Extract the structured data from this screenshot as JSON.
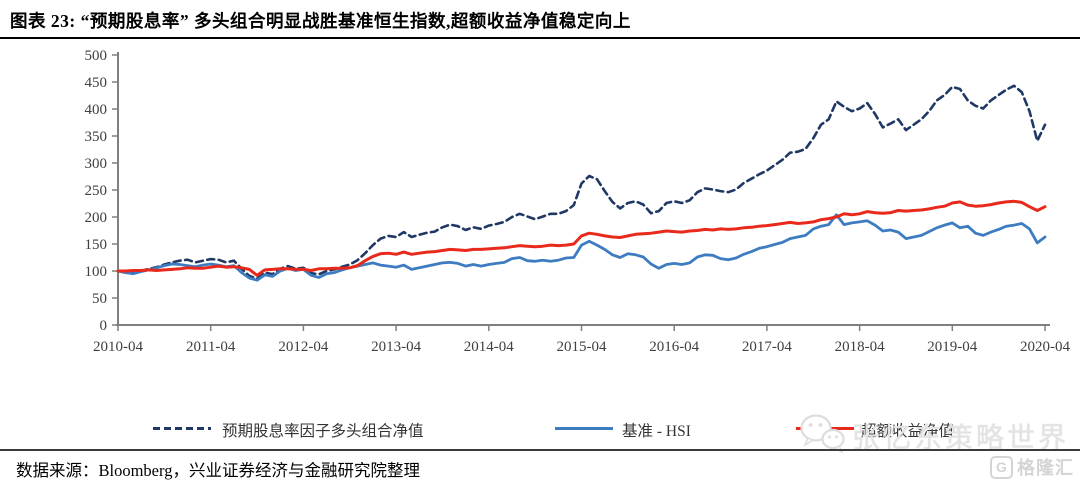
{
  "header": {
    "title": "图表 23: “预期股息率” 多头组合明显战胜基准恒生指数,超额收益净值稳定向上"
  },
  "chart_data": {
    "type": "line",
    "title": "",
    "xlabel": "",
    "ylabel": "",
    "ylim": [
      0,
      500
    ],
    "y_ticks": [
      0,
      50,
      100,
      150,
      200,
      250,
      300,
      350,
      400,
      450,
      500
    ],
    "x_tick_labels": [
      "2010-04",
      "2011-04",
      "2012-04",
      "2013-04",
      "2014-04",
      "2015-04",
      "2016-04",
      "2017-04",
      "2018-04",
      "2019-04",
      "2020-04"
    ],
    "x_frequency": "monthly",
    "x_start": "2010-04",
    "x_end": "2020-04",
    "grid": false,
    "legend_position": "bottom",
    "axis_color": "#7f7f7f",
    "tick_label_color": "#404040",
    "series": [
      {
        "name": "预期股息率因子多头组合净值",
        "color": "#1F3864",
        "style": "dashed",
        "width": 2.6,
        "values": [
          100,
          97,
          96,
          100,
          104,
          107,
          112,
          116,
          119,
          121,
          116,
          119,
          122,
          121,
          116,
          119,
          104,
          91,
          86,
          97,
          94,
          104,
          109,
          104,
          106,
          96,
          94,
          100,
          103,
          108,
          112,
          120,
          133,
          148,
          160,
          165,
          163,
          172,
          163,
          167,
          171,
          173,
          181,
          186,
          183,
          176,
          181,
          178,
          184,
          187,
          191,
          200,
          206,
          201,
          196,
          201,
          206,
          206,
          211,
          222,
          262,
          276,
          270,
          248,
          228,
          216,
          226,
          229,
          223,
          207,
          211,
          226,
          229,
          226,
          231,
          246,
          253,
          251,
          248,
          246,
          251,
          263,
          271,
          279,
          286,
          296,
          306,
          319,
          321,
          326,
          346,
          371,
          381,
          414,
          404,
          396,
          401,
          411,
          391,
          366,
          373,
          381,
          361,
          371,
          381,
          396,
          416,
          426,
          441,
          437,
          416,
          406,
          401,
          416,
          426,
          436,
          443,
          431,
          396,
          341,
          371
        ]
      },
      {
        "name": "基准 - HSI",
        "color": "#3D7CC0",
        "style": "solid",
        "width": 2.8,
        "values": [
          100,
          97,
          95,
          99,
          102,
          106,
          110,
          113,
          112,
          110,
          108,
          111,
          113,
          111,
          108,
          110,
          97,
          87,
          83,
          93,
          90,
          100,
          105,
          101,
          103,
          92,
          88,
          95,
          97,
          102,
          106,
          109,
          112,
          115,
          111,
          109,
          107,
          111,
          103,
          106,
          109,
          112,
          115,
          116,
          114,
          109,
          112,
          109,
          112,
          114,
          116,
          123,
          125,
          119,
          118,
          120,
          118,
          120,
          124,
          125,
          148,
          155,
          148,
          140,
          130,
          125,
          132,
          130,
          126,
          113,
          105,
          112,
          114,
          112,
          115,
          126,
          130,
          129,
          123,
          121,
          124,
          131,
          136,
          142,
          145,
          149,
          153,
          160,
          163,
          166,
          178,
          183,
          186,
          204,
          186,
          189,
          191,
          193,
          185,
          174,
          176,
          172,
          160,
          163,
          166,
          173,
          180,
          185,
          189,
          180,
          183,
          170,
          166,
          172,
          177,
          183,
          185,
          188,
          178,
          152,
          163
        ]
      },
      {
        "name": "超额收益净值",
        "color": "#E8291C",
        "style": "solid",
        "width": 3,
        "values": [
          100,
          100,
          101,
          101,
          102,
          101,
          102,
          103,
          104,
          106,
          105,
          105,
          107,
          109,
          107,
          108,
          106,
          103,
          92,
          102,
          103,
          104,
          104,
          103,
          103,
          101,
          104,
          104,
          105,
          105,
          106,
          110,
          119,
          127,
          132,
          133,
          131,
          135,
          131,
          133,
          135,
          136,
          138,
          140,
          139,
          138,
          140,
          140,
          141,
          142,
          143,
          145,
          147,
          146,
          145,
          146,
          148,
          147,
          148,
          150,
          165,
          170,
          168,
          165,
          163,
          162,
          165,
          168,
          169,
          170,
          172,
          174,
          173,
          172,
          174,
          175,
          177,
          176,
          178,
          177,
          178,
          180,
          181,
          183,
          184,
          186,
          188,
          190,
          188,
          189,
          191,
          195,
          197,
          200,
          206,
          204,
          206,
          210,
          208,
          207,
          208,
          212,
          211,
          212,
          213,
          215,
          218,
          220,
          226,
          228,
          222,
          220,
          221,
          223,
          226,
          228,
          229,
          227,
          219,
          212,
          219
        ]
      }
    ]
  },
  "watermark": {
    "text": "张忆东策略世界"
  },
  "site_logo": {
    "g_letter": "G",
    "text": "格隆汇"
  },
  "footer": {
    "source": "数据来源：Bloomberg，兴业证券经济与金融研究院整理"
  }
}
